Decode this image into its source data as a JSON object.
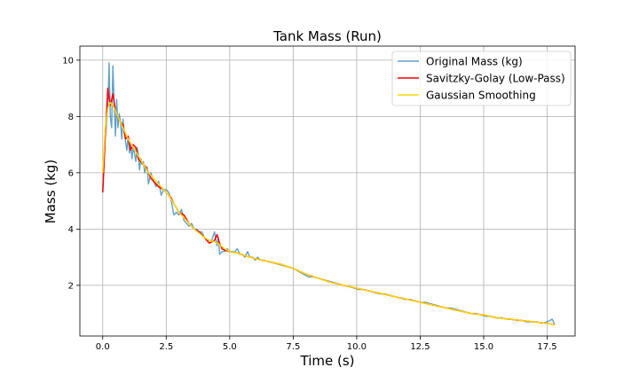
{
  "chart_data": {
    "type": "line",
    "title": "Tank Mass (Run)",
    "xlabel": "Time (s)",
    "ylabel": "Mass (kg)",
    "xlim": [
      -0.9,
      18.6
    ],
    "ylim": [
      0.2,
      10.5
    ],
    "xticks": [
      0.0,
      2.5,
      5.0,
      7.5,
      10.0,
      12.5,
      15.0,
      17.5
    ],
    "xtick_labels": [
      "0.0",
      "2.5",
      "5.0",
      "7.5",
      "10.0",
      "12.5",
      "15.0",
      "17.5"
    ],
    "yticks": [
      2,
      4,
      6,
      8,
      10
    ],
    "ytick_labels": [
      "2",
      "4",
      "6",
      "8",
      "10"
    ],
    "grid": true,
    "legend_position": "top-right",
    "series": [
      {
        "name": "Original Mass (kg)",
        "color": "#1f77b4",
        "x": [
          0.0,
          0.1,
          0.2,
          0.25,
          0.3,
          0.35,
          0.4,
          0.45,
          0.5,
          0.55,
          0.6,
          0.65,
          0.7,
          0.75,
          0.8,
          0.85,
          0.9,
          0.95,
          1.0,
          1.05,
          1.1,
          1.15,
          1.2,
          1.25,
          1.3,
          1.35,
          1.4,
          1.45,
          1.5,
          1.55,
          1.6,
          1.65,
          1.7,
          1.75,
          1.8,
          1.9,
          2.0,
          2.1,
          2.2,
          2.3,
          2.4,
          2.5,
          2.6,
          2.7,
          2.8,
          2.9,
          3.0,
          3.1,
          3.2,
          3.3,
          3.4,
          3.5,
          3.6,
          3.7,
          3.8,
          3.9,
          4.0,
          4.1,
          4.2,
          4.3,
          4.4,
          4.5,
          4.55,
          4.6,
          4.7,
          4.8,
          4.9,
          5.0,
          5.1,
          5.2,
          5.3,
          5.4,
          5.5,
          5.6,
          5.7,
          5.8,
          5.9,
          6.0,
          6.1,
          6.2,
          6.3,
          6.5,
          6.7,
          6.9,
          7.1,
          7.3,
          7.5,
          7.7,
          7.9,
          8.1,
          8.3,
          8.5,
          8.7,
          8.9,
          9.1,
          9.3,
          9.5,
          9.7,
          9.9,
          10.1,
          10.3,
          10.5,
          10.7,
          10.9,
          11.1,
          11.3,
          11.5,
          11.7,
          11.9,
          12.1,
          12.3,
          12.5,
          12.7,
          12.9,
          13.1,
          13.3,
          13.5,
          13.7,
          13.9,
          14.1,
          14.3,
          14.5,
          14.7,
          14.9,
          15.1,
          15.3,
          15.5,
          15.7,
          15.9,
          16.1,
          16.3,
          16.5,
          16.7,
          16.9,
          17.1,
          17.3,
          17.5,
          17.7,
          17.8
        ],
        "y": [
          5.4,
          7.3,
          8.3,
          9.9,
          8.0,
          7.6,
          9.8,
          8.5,
          7.3,
          8.6,
          7.6,
          8.1,
          7.8,
          7.2,
          7.9,
          7.4,
          7.1,
          6.8,
          7.3,
          6.7,
          7.0,
          6.5,
          6.9,
          6.7,
          6.4,
          6.9,
          6.7,
          6.1,
          6.5,
          6.3,
          6.4,
          6.0,
          6.2,
          6.2,
          5.6,
          6.0,
          5.7,
          5.5,
          5.7,
          5.2,
          5.4,
          5.4,
          5.3,
          5.0,
          4.5,
          4.6,
          4.5,
          4.7,
          4.3,
          4.2,
          4.1,
          4.2,
          4.0,
          4.0,
          3.9,
          3.9,
          3.7,
          3.6,
          3.6,
          3.6,
          3.9,
          3.4,
          3.7,
          3.1,
          3.2,
          3.2,
          3.3,
          3.2,
          3.2,
          3.2,
          3.3,
          3.1,
          3.1,
          3.0,
          3.2,
          3.0,
          3.0,
          2.9,
          3.0,
          2.9,
          2.9,
          2.85,
          2.8,
          2.75,
          2.7,
          2.65,
          2.6,
          2.5,
          2.4,
          2.3,
          2.3,
          2.25,
          2.2,
          2.15,
          2.1,
          2.05,
          2.0,
          1.95,
          1.9,
          1.85,
          1.85,
          1.8,
          1.75,
          1.7,
          1.7,
          1.65,
          1.6,
          1.55,
          1.5,
          1.5,
          1.45,
          1.4,
          1.4,
          1.35,
          1.3,
          1.25,
          1.2,
          1.2,
          1.15,
          1.1,
          1.05,
          1.0,
          1.0,
          0.95,
          0.9,
          0.9,
          0.85,
          0.85,
          0.8,
          0.8,
          0.75,
          0.75,
          0.7,
          0.7,
          0.7,
          0.65,
          0.7,
          0.8,
          0.6
        ]
      },
      {
        "name": "Savitzky-Golay (Low-Pass)",
        "color": "#ff0000",
        "x": [
          0.0,
          0.1,
          0.2,
          0.3,
          0.4,
          0.5,
          0.6,
          0.7,
          0.8,
          0.9,
          1.0,
          1.1,
          1.2,
          1.3,
          1.4,
          1.5,
          1.6,
          1.7,
          1.8,
          1.9,
          2.0,
          2.2,
          2.4,
          2.5,
          2.6,
          2.7,
          2.8,
          3.0,
          3.2,
          3.4,
          3.6,
          3.8,
          4.0,
          4.2,
          4.4,
          4.5,
          4.6,
          4.7,
          4.8,
          5.0,
          5.3,
          5.6,
          6.0,
          6.5,
          7.0,
          7.5,
          8.0,
          8.5,
          9.0,
          9.5,
          10.0,
          10.5,
          11.0,
          11.5,
          12.0,
          12.5,
          13.0,
          13.5,
          14.0,
          14.5,
          15.0,
          15.5,
          16.0,
          16.5,
          17.0,
          17.5,
          17.8
        ],
        "y": [
          5.3,
          7.3,
          9.0,
          8.4,
          8.8,
          8.2,
          8.0,
          7.8,
          7.7,
          7.2,
          7.3,
          6.8,
          7.0,
          6.9,
          6.5,
          6.4,
          6.3,
          6.2,
          6.0,
          5.8,
          5.7,
          5.5,
          5.4,
          5.3,
          5.2,
          5.1,
          4.9,
          4.6,
          4.5,
          4.2,
          4.0,
          3.9,
          3.7,
          3.5,
          3.6,
          3.8,
          3.5,
          3.3,
          3.25,
          3.2,
          3.15,
          3.05,
          2.95,
          2.85,
          2.75,
          2.6,
          2.4,
          2.25,
          2.1,
          2.0,
          1.9,
          1.8,
          1.7,
          1.6,
          1.5,
          1.4,
          1.3,
          1.2,
          1.1,
          1.0,
          0.95,
          0.85,
          0.8,
          0.75,
          0.7,
          0.65,
          0.6
        ]
      },
      {
        "name": "Gaussian Smoothing",
        "color": "#ffd700",
        "x": [
          0.0,
          0.1,
          0.2,
          0.3,
          0.4,
          0.5,
          0.6,
          0.8,
          1.0,
          1.2,
          1.4,
          1.6,
          1.8,
          2.0,
          2.2,
          2.4,
          2.6,
          2.8,
          3.0,
          3.2,
          3.4,
          3.6,
          3.8,
          4.0,
          4.2,
          4.4,
          4.6,
          4.8,
          5.0,
          5.3,
          5.6,
          6.0,
          6.5,
          7.0,
          7.5,
          8.0,
          8.5,
          9.0,
          9.5,
          10.0,
          10.5,
          11.0,
          11.5,
          12.0,
          12.5,
          13.0,
          13.5,
          14.0,
          14.5,
          15.0,
          15.5,
          16.0,
          16.5,
          17.0,
          17.5,
          17.8
        ],
        "y": [
          6.0,
          7.6,
          8.3,
          8.5,
          8.4,
          8.2,
          8.0,
          7.6,
          7.2,
          6.9,
          6.6,
          6.3,
          6.0,
          5.8,
          5.6,
          5.4,
          5.2,
          4.9,
          4.6,
          4.4,
          4.2,
          4.0,
          3.85,
          3.7,
          3.6,
          3.55,
          3.45,
          3.3,
          3.2,
          3.15,
          3.05,
          2.95,
          2.85,
          2.75,
          2.6,
          2.4,
          2.25,
          2.1,
          2.0,
          1.9,
          1.8,
          1.7,
          1.6,
          1.5,
          1.4,
          1.3,
          1.2,
          1.1,
          1.0,
          0.95,
          0.85,
          0.8,
          0.75,
          0.7,
          0.65,
          0.6
        ]
      }
    ]
  }
}
